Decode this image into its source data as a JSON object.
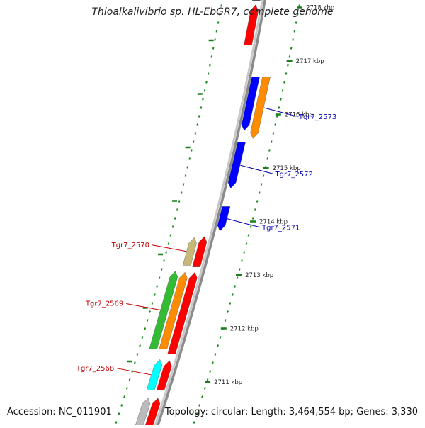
{
  "title": "Thioalkalivibrio sp. HL-EbGR7, complete genome",
  "accession": "Accession: NC_011901",
  "topology": "Topology: circular; Length: 3,464,554 bp; Genes: 3,330",
  "colors": {
    "backbone": "#8a8a8a",
    "tick_major": "#1a7f1a",
    "tick_minor": "#1a8a1a",
    "label_forward": "#c00000",
    "label_reverse": "#0000b0"
  },
  "scale": {
    "unit": "kbp",
    "ticks": [
      {
        "kbp": 2718,
        "label": "2718 kbp"
      },
      {
        "kbp": 2717,
        "label": "2717 kbp"
      },
      {
        "kbp": 2716,
        "label": "2716 kbp"
      },
      {
        "kbp": 2715,
        "label": "2715 kbp"
      },
      {
        "kbp": 2714,
        "label": "2714 kbp"
      },
      {
        "kbp": 2713,
        "label": "2713 kbp"
      },
      {
        "kbp": 2712,
        "label": "2712 kbp"
      },
      {
        "kbp": 2711,
        "label": "2711 kbp"
      }
    ]
  },
  "genes": [
    {
      "id": "g-red-top",
      "strand": "forward",
      "lane": 1,
      "start_kbp": 2717.3,
      "end_kbp": 2718.05,
      "color": "#ff0000",
      "label": ""
    },
    {
      "id": "g-grey-top",
      "strand": "forward",
      "lane": 1,
      "start_kbp": 2718.12,
      "end_kbp": 2718.3,
      "color": "#555555",
      "label": ""
    },
    {
      "id": "g-blue-1",
      "strand": "reverse",
      "lane": 1,
      "start_kbp": 2715.7,
      "end_kbp": 2716.7,
      "color": "#0000ff",
      "label": ""
    },
    {
      "id": "g-orange-rev",
      "strand": "reverse",
      "lane": 2,
      "start_kbp": 2715.55,
      "end_kbp": 2716.7,
      "color": "#ff8c00",
      "label": "Tgr7_2573"
    },
    {
      "id": "g-blue-2",
      "strand": "reverse",
      "lane": 1,
      "start_kbp": 2714.62,
      "end_kbp": 2715.48,
      "color": "#0000ff",
      "label": "Tgr7_2572"
    },
    {
      "id": "g-blue-3",
      "strand": "reverse",
      "lane": 1,
      "start_kbp": 2713.82,
      "end_kbp": 2714.28,
      "color": "#0000ff",
      "label": "Tgr7_2571"
    },
    {
      "id": "g-red-2",
      "strand": "forward",
      "lane": 1,
      "start_kbp": 2713.15,
      "end_kbp": 2713.72,
      "color": "#ff0000",
      "label": ""
    },
    {
      "id": "g-khaki",
      "strand": "forward",
      "lane": 2,
      "start_kbp": 2713.18,
      "end_kbp": 2713.7,
      "color": "#c8b878",
      "label": "Tgr7_2570"
    },
    {
      "id": "g-red-3",
      "strand": "forward",
      "lane": 1,
      "start_kbp": 2711.52,
      "end_kbp": 2713.05,
      "color": "#ff0000",
      "label": ""
    },
    {
      "id": "g-orange-fwd",
      "strand": "forward",
      "lane": 2,
      "start_kbp": 2711.62,
      "end_kbp": 2713.05,
      "color": "#ff8c00",
      "label": ""
    },
    {
      "id": "g-green",
      "strand": "forward",
      "lane": 3,
      "start_kbp": 2711.62,
      "end_kbp": 2713.07,
      "color": "#33bb33",
      "label": "Tgr7_2569"
    },
    {
      "id": "g-red-4",
      "strand": "forward",
      "lane": 1,
      "start_kbp": 2710.85,
      "end_kbp": 2711.4,
      "color": "#ff0000",
      "label": ""
    },
    {
      "id": "g-cyan",
      "strand": "forward",
      "lane": 2,
      "start_kbp": 2710.85,
      "end_kbp": 2711.42,
      "color": "#00ffff",
      "label": "Tgr7_2568"
    },
    {
      "id": "g-red-5",
      "strand": "forward",
      "lane": 1,
      "start_kbp": 2710.0,
      "end_kbp": 2710.7,
      "color": "#ff0000",
      "label": ""
    },
    {
      "id": "g-grey-bottom",
      "strand": "forward",
      "lane": 2,
      "start_kbp": 2710.0,
      "end_kbp": 2710.7,
      "color": "#bbbbbb",
      "label": ""
    }
  ]
}
